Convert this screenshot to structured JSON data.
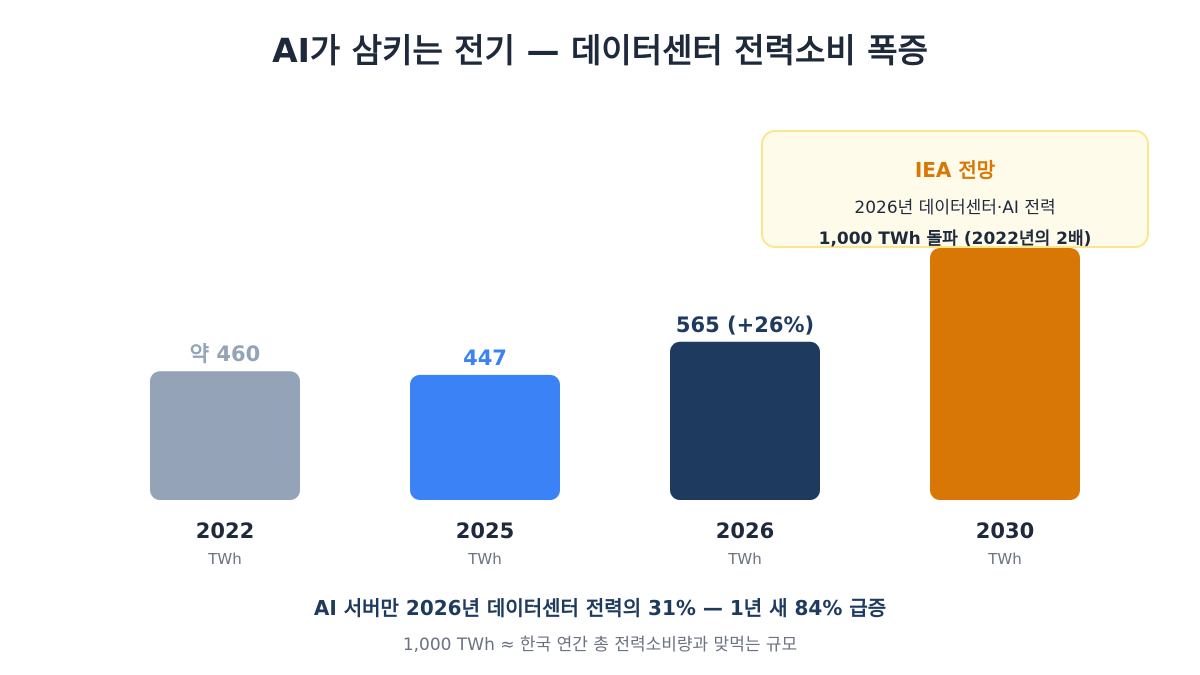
{
  "title": "AI가 삼키는 전기 — 데이터센터 전력소비 폭증",
  "chart_data": {
    "type": "bar",
    "categories": [
      "2022",
      "2025",
      "2026",
      "2030"
    ],
    "values": [
      460,
      447,
      565,
      null
    ],
    "value_labels": [
      "약 460",
      "447",
      "565 (+26%)",
      ""
    ],
    "unit_labels": [
      "TWh",
      "TWh",
      "TWh",
      "TWh"
    ],
    "colors": [
      "#94a3b8",
      "#3b82f6",
      "#1e3a5f",
      "#d97706"
    ],
    "value_label_colors": [
      "#94a3b8",
      "#3b82f6",
      "#1e3a5f",
      "#d97706"
    ]
  },
  "callout": {
    "title": "IEA 전망",
    "line1": "2026년 데이터센터·AI 전력",
    "line2": "1,000 TWh 돌파 (2022년의 2배)"
  },
  "footer": {
    "main": "AI 서버만 2026년 데이터센터 전력의 31% — 1년 새 84% 급증",
    "sub": "1,000 TWh ≈ 한국 연간 총 전력소비량과 맞먹는 규모"
  }
}
